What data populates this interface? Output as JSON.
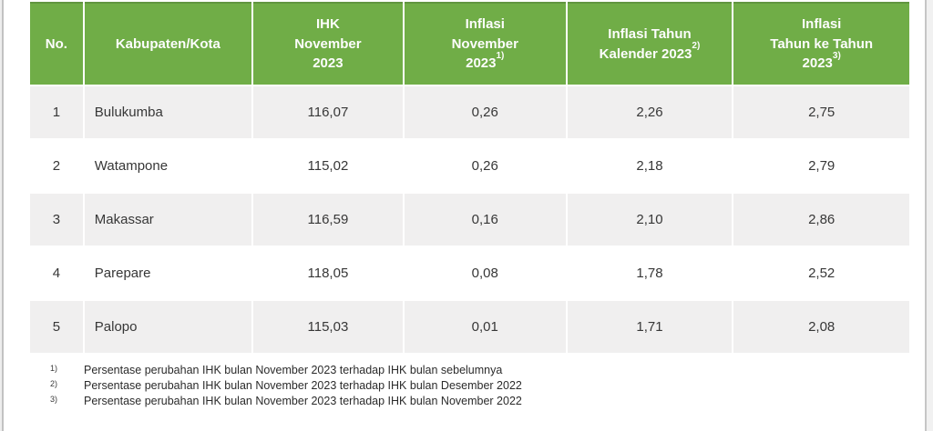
{
  "document": {
    "type": "inflation-statistics-table",
    "region_rows": 5
  },
  "colors": {
    "header_bg": "#70ad47",
    "header_top_edge": "#619540",
    "header_text": "#fdfdfd",
    "row_stripe": "#f0efef",
    "row_white": "#ffffff",
    "body_text": "#373737",
    "edge_gray": "#c6c6c6"
  },
  "table": {
    "headers": [
      {
        "label": "No.",
        "sup": ""
      },
      {
        "label": "Kabupaten/Kota",
        "sup": ""
      },
      {
        "label": "IHK\nNovember\n2023",
        "sup": ""
      },
      {
        "label": "Inflasi\nNovember\n2023",
        "sup": "1)"
      },
      {
        "label": "Inflasi Tahun\nKalender 2023",
        "sup": "2)"
      },
      {
        "label": "Inflasi\nTahun ke Tahun\n2023",
        "sup": "3)"
      }
    ],
    "rows": [
      {
        "cells": [
          "1",
          "Bulukumba",
          "116,07",
          "0,26",
          "2,26",
          "2,75"
        ]
      },
      {
        "cells": [
          "2",
          "Watampone",
          "115,02",
          "0,26",
          "2,18",
          "2,79"
        ]
      },
      {
        "cells": [
          "3",
          "Makassar",
          "116,59",
          "0,16",
          "2,10",
          "2,86"
        ]
      },
      {
        "cells": [
          "4",
          "Parepare",
          "118,05",
          "0,08",
          "1,78",
          "2,52"
        ]
      },
      {
        "cells": [
          "5",
          "Palopo",
          "115,03",
          "0,01",
          "1,71",
          "2,08"
        ]
      }
    ]
  },
  "footnotes": [
    {
      "marker": "1)",
      "text": "Persentase perubahan IHK bulan November 2023 terhadap IHK bulan sebelumnya"
    },
    {
      "marker": "2)",
      "text": "Persentase perubahan IHK bulan November 2023 terhadap IHK bulan Desember 2022"
    },
    {
      "marker": "3)",
      "text": "Persentase perubahan IHK bulan November 2023 terhadap IHK bulan November 2022"
    }
  ]
}
